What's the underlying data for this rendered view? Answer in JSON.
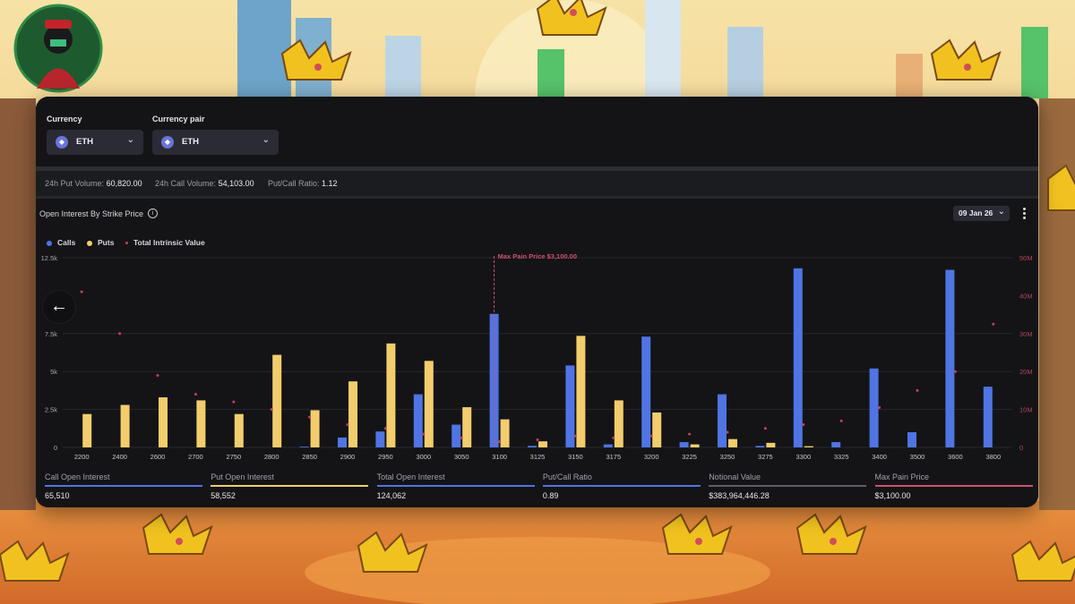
{
  "controls": {
    "currency_label": "Currency",
    "currency_value": "ETH",
    "pair_label": "Currency pair",
    "pair_value": "ETH"
  },
  "stats": {
    "put_volume_label": "24h Put Volume:",
    "put_volume_value": "60,820.00",
    "call_volume_label": "24h Call Volume:",
    "call_volume_value": "54,103.00",
    "ratio_label": "Put/Call Ratio:",
    "ratio_value": "1.12"
  },
  "chart_header": {
    "title": "Open Interest By Strike Price",
    "date": "09 Jan 26"
  },
  "metrics": [
    {
      "label": "Call Open Interest",
      "value": "65,510"
    },
    {
      "label": "Put Open Interest",
      "value": "58,552"
    },
    {
      "label": "Total Open Interest",
      "value": "124,062"
    },
    {
      "label": "Put/Call Ratio",
      "value": "0.89"
    },
    {
      "label": "Notional Value",
      "value": "$383,964,446.28"
    },
    {
      "label": "Max Pain Price",
      "value": "$3,100.00"
    }
  ],
  "colors": {
    "calls": "#4f74e3",
    "puts": "#f3cd6b",
    "intrinsic": "#c9405a",
    "max_pain": "#d0506a"
  },
  "chart_data": {
    "type": "bar",
    "categories": [
      "2200",
      "2400",
      "2600",
      "2700",
      "2750",
      "2800",
      "2850",
      "2900",
      "2950",
      "3000",
      "3050",
      "3100",
      "3125",
      "3150",
      "3175",
      "3200",
      "3225",
      "3250",
      "3275",
      "3300",
      "3325",
      "3400",
      "3500",
      "3600",
      "3800"
    ],
    "series": [
      {
        "name": "Calls",
        "axis": "left",
        "values": [
          0,
          0,
          0,
          0,
          0,
          0,
          50,
          650,
          1050,
          3500,
          1500,
          8800,
          100,
          5400,
          200,
          7300,
          350,
          3500,
          100,
          11800,
          350,
          5200,
          1000,
          11700,
          4000
        ]
      },
      {
        "name": "Puts",
        "axis": "left",
        "values": [
          2200,
          2800,
          3300,
          3100,
          2200,
          6100,
          2450,
          4350,
          6850,
          5700,
          2650,
          1850,
          400,
          7350,
          3100,
          2300,
          200,
          550,
          300,
          80,
          0,
          0,
          0,
          0,
          0
        ]
      },
      {
        "name": "Total Intrinsic Value",
        "type": "scatter",
        "axis": "right",
        "values": [
          41000000,
          30000000,
          19000000,
          14000000,
          12000000,
          10000000,
          8000000,
          6000000,
          5000000,
          3500000,
          2500000,
          1500000,
          2000000,
          3000000,
          2500000,
          3000000,
          3500000,
          4000000,
          5000000,
          6000000,
          7000000,
          10500000,
          15000000,
          20000000,
          32500000
        ]
      }
    ],
    "y_left_ticks": [
      "0",
      "2.5k",
      "5k",
      "7.5k",
      "12.5k"
    ],
    "y_left_max": 12500,
    "y_right_ticks": [
      "0",
      "10M",
      "20M",
      "30M",
      "40M",
      "50M"
    ],
    "y_right_max": 50000000,
    "annotation": {
      "label": "Max Pain Price $3,100.00",
      "category": "3100"
    },
    "legend": "top-left"
  }
}
